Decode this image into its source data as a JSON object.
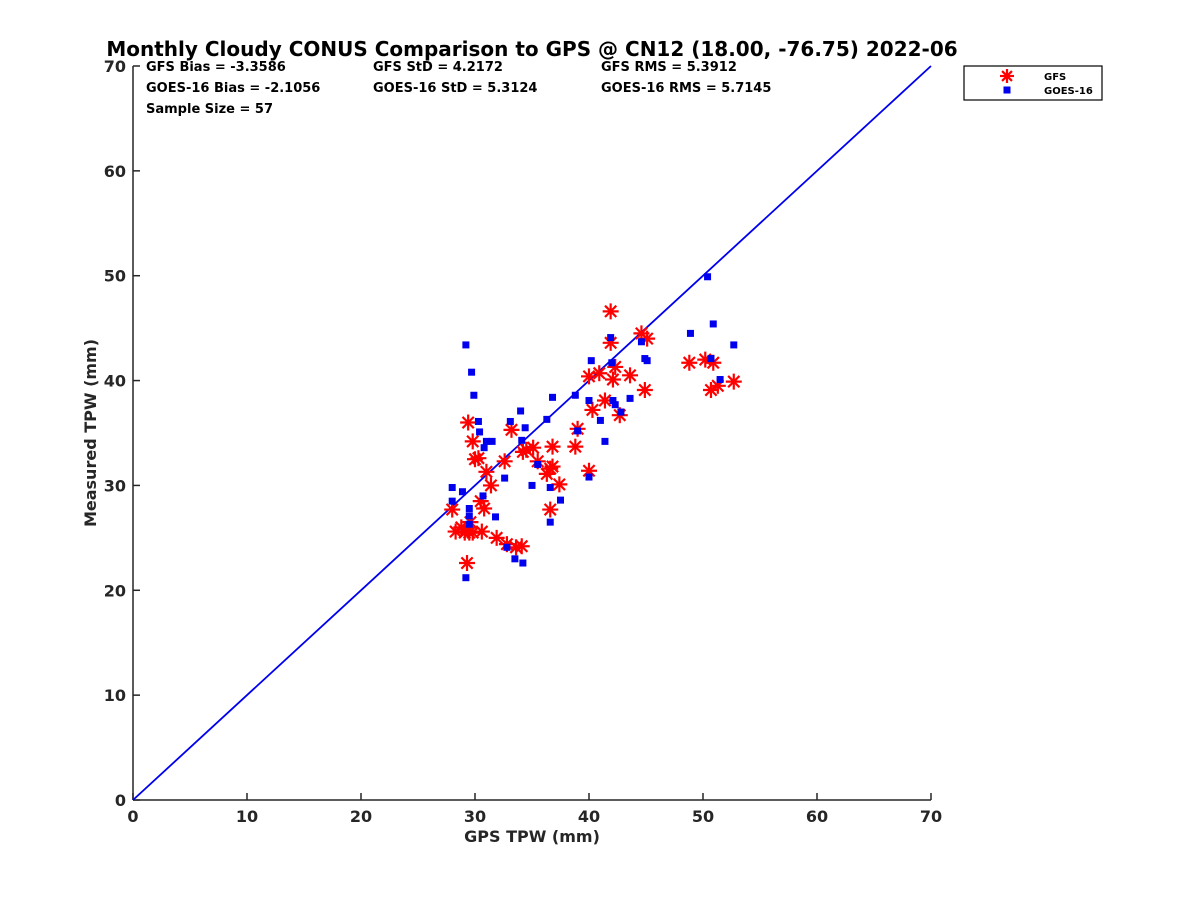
{
  "chart_data": {
    "type": "scatter",
    "title": "Monthly Cloudy CONUS Comparison to GPS @ CN12 (18.00, -76.75) 2022-06",
    "xlabel": "GPS TPW (mm)",
    "ylabel": "Measured TPW (mm)",
    "xlim": [
      0,
      70
    ],
    "ylim": [
      0,
      70
    ],
    "xticks": [
      0,
      10,
      20,
      30,
      40,
      50,
      60,
      70
    ],
    "yticks": [
      0,
      10,
      20,
      30,
      40,
      50,
      60,
      70
    ],
    "grid": false,
    "legend_position": "top-right outside",
    "reference_line": {
      "name": "1:1 line",
      "x": [
        0,
        70
      ],
      "y": [
        0,
        70
      ],
      "color": "#0000ee"
    },
    "stats": [
      [
        "GFS Bias = -3.3586",
        "GFS StD = 4.2172",
        "GFS RMS = 5.3912"
      ],
      [
        "GOES-16 Bias = -2.1056",
        "GOES-16 StD = 5.3124",
        "GOES-16 RMS = 5.7145"
      ],
      [
        "Sample Size = 57"
      ]
    ],
    "series": [
      {
        "name": "GFS",
        "marker": "asterisk",
        "color": "#ff0000",
        "points": [
          [
            28.0,
            27.7
          ],
          [
            28.3,
            25.6
          ],
          [
            28.8,
            26.0
          ],
          [
            29.1,
            25.5
          ],
          [
            29.3,
            22.6
          ],
          [
            29.4,
            36.0
          ],
          [
            29.5,
            25.5
          ],
          [
            29.6,
            26.5
          ],
          [
            29.8,
            34.2
          ],
          [
            29.8,
            25.5
          ],
          [
            30.0,
            32.5
          ],
          [
            30.3,
            32.6
          ],
          [
            30.5,
            28.5
          ],
          [
            30.6,
            25.6
          ],
          [
            30.8,
            27.8
          ],
          [
            31.0,
            31.3
          ],
          [
            31.4,
            30.0
          ],
          [
            31.9,
            25.0
          ],
          [
            32.6,
            32.3
          ],
          [
            32.8,
            24.4
          ],
          [
            33.2,
            35.3
          ],
          [
            33.6,
            24.1
          ],
          [
            34.1,
            24.2
          ],
          [
            34.2,
            33.2
          ],
          [
            34.5,
            33.4
          ],
          [
            35.1,
            33.6
          ],
          [
            35.5,
            32.3
          ],
          [
            36.3,
            31.1
          ],
          [
            36.6,
            31.6
          ],
          [
            36.6,
            27.7
          ],
          [
            36.8,
            33.7
          ],
          [
            36.8,
            31.8
          ],
          [
            37.4,
            30.1
          ],
          [
            38.8,
            33.7
          ],
          [
            39.0,
            35.4
          ],
          [
            40.0,
            40.4
          ],
          [
            40.0,
            31.4
          ],
          [
            40.3,
            37.2
          ],
          [
            40.9,
            40.7
          ],
          [
            41.4,
            38.1
          ],
          [
            41.9,
            46.6
          ],
          [
            41.9,
            43.6
          ],
          [
            42.1,
            40.1
          ],
          [
            42.3,
            41.3
          ],
          [
            42.7,
            36.7
          ],
          [
            43.6,
            40.5
          ],
          [
            44.6,
            44.5
          ],
          [
            44.9,
            39.1
          ],
          [
            45.1,
            44.0
          ],
          [
            48.8,
            41.7
          ],
          [
            50.2,
            42.0
          ],
          [
            50.7,
            39.1
          ],
          [
            50.9,
            41.7
          ],
          [
            51.3,
            39.5
          ],
          [
            52.7,
            39.9
          ]
        ]
      },
      {
        "name": "GOES-16",
        "marker": "square",
        "color": "#0000ee",
        "points": [
          [
            28.0,
            29.8
          ],
          [
            28.0,
            28.5
          ],
          [
            28.9,
            29.4
          ],
          [
            29.2,
            43.4
          ],
          [
            29.2,
            21.2
          ],
          [
            29.5,
            27.8
          ],
          [
            29.5,
            27.1
          ],
          [
            29.5,
            26.3
          ],
          [
            29.7,
            40.8
          ],
          [
            29.9,
            38.6
          ],
          [
            30.3,
            36.1
          ],
          [
            30.4,
            35.1
          ],
          [
            30.7,
            29.0
          ],
          [
            30.8,
            33.6
          ],
          [
            31.0,
            34.2
          ],
          [
            31.5,
            34.2
          ],
          [
            31.8,
            27.0
          ],
          [
            32.6,
            30.7
          ],
          [
            32.8,
            24.1
          ],
          [
            33.1,
            36.1
          ],
          [
            33.5,
            23.0
          ],
          [
            34.0,
            37.1
          ],
          [
            34.1,
            34.3
          ],
          [
            34.2,
            22.6
          ],
          [
            34.4,
            35.5
          ],
          [
            35.0,
            30.0
          ],
          [
            35.5,
            32.0
          ],
          [
            36.3,
            36.3
          ],
          [
            36.6,
            29.8
          ],
          [
            36.6,
            26.5
          ],
          [
            36.8,
            38.4
          ],
          [
            37.5,
            28.6
          ],
          [
            38.8,
            38.6
          ],
          [
            39.0,
            35.2
          ],
          [
            40.0,
            30.8
          ],
          [
            40.0,
            38.1
          ],
          [
            40.2,
            41.9
          ],
          [
            41.0,
            36.2
          ],
          [
            41.4,
            34.2
          ],
          [
            41.9,
            44.1
          ],
          [
            42.0,
            41.7
          ],
          [
            42.1,
            38.1
          ],
          [
            42.3,
            37.7
          ],
          [
            42.8,
            37.0
          ],
          [
            43.6,
            38.3
          ],
          [
            44.6,
            43.7
          ],
          [
            44.9,
            42.1
          ],
          [
            45.1,
            41.9
          ],
          [
            48.9,
            44.5
          ],
          [
            50.4,
            49.9
          ],
          [
            50.7,
            42.1
          ],
          [
            50.9,
            45.4
          ],
          [
            51.5,
            40.1
          ],
          [
            52.7,
            43.4
          ]
        ]
      }
    ]
  }
}
